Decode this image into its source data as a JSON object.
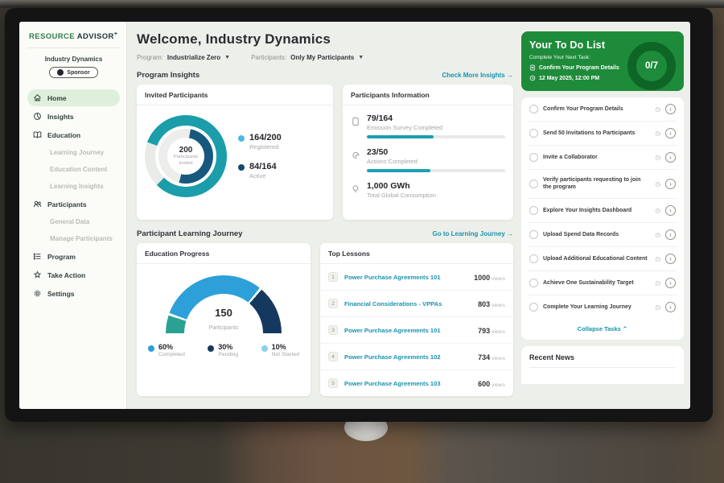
{
  "sidebar": {
    "logo": {
      "brand_green": "RESOURCE",
      "brand_dark": "ADVISOR",
      "plus": "+"
    },
    "account": {
      "name": "Industry Dynamics",
      "badge": "Sponsor"
    },
    "items": [
      {
        "label": "Home"
      },
      {
        "label": "Insights"
      },
      {
        "label": "Education"
      },
      {
        "label": "Learning Journey"
      },
      {
        "label": "Education Content"
      },
      {
        "label": "Learning Insights"
      },
      {
        "label": "Participants"
      },
      {
        "label": "General Data"
      },
      {
        "label": "Manage Participants"
      },
      {
        "label": "Program"
      },
      {
        "label": "Take Action"
      },
      {
        "label": "Settings"
      }
    ]
  },
  "header": {
    "title": "Welcome, Industry Dynamics",
    "filters": [
      {
        "label": "Program:",
        "value": "Industrialize Zero"
      },
      {
        "label": "Participants:",
        "value": "Only My Participants"
      }
    ]
  },
  "insights_section": {
    "heading": "Program Insights",
    "link": "Check More Insights",
    "link_arrow": "→"
  },
  "invited": {
    "title": "Invited Participants",
    "center_value": "200",
    "center_label": "Participants Invited",
    "legend": [
      {
        "value": "164/200",
        "label": "Registered",
        "dot_color": "#4cb8e8"
      },
      {
        "value": "84/164",
        "label": "Active",
        "dot_color": "#124a70"
      }
    ]
  },
  "participants_info": {
    "title": "Participants Information",
    "stats": [
      {
        "value": "79/164",
        "label": "Emission Survey Completed",
        "num": 79,
        "total": 164,
        "has_bar": true
      },
      {
        "value": "23/50",
        "label": "Actions Completed",
        "num": 23,
        "total": 50,
        "has_bar": true
      },
      {
        "value": "1,000 GWh",
        "label": "Total Global Consumption",
        "has_bar": false
      }
    ]
  },
  "journey_section": {
    "heading": "Participant Learning Journey",
    "link": "Go to Learning Journey",
    "link_arrow": "→"
  },
  "education_progress": {
    "title": "Education Progress",
    "center_value": "150",
    "center_label": "Participants",
    "legend": [
      {
        "value": "60%",
        "label": "Completed",
        "dot_color": "#2d9fd9"
      },
      {
        "value": "30%",
        "label": "Pending",
        "dot_color": "#15395e"
      },
      {
        "value": "10%",
        "label": "Not Started",
        "dot_color": "#85d2f0"
      }
    ]
  },
  "top_lessons": {
    "title": "Top Lessons",
    "views_suffix": " views",
    "rows": [
      {
        "rank": "1",
        "title": "Power Purchase Agreements 101",
        "views": "1000"
      },
      {
        "rank": "2",
        "title": "Financial Considerations - VPPAs",
        "views": "803"
      },
      {
        "rank": "3",
        "title": "Power Purchase Agreements 101",
        "views": "793"
      },
      {
        "rank": "4",
        "title": "Power Purchase Agreements 102",
        "views": "734"
      },
      {
        "rank": "5",
        "title": "Power Purchase Agreements 103",
        "views": "600"
      }
    ]
  },
  "todo": {
    "title": "Your To Do List",
    "subtitle": "Complete Your Next Task:",
    "next_task": "Confirm Your Program Details",
    "due": "12 May 2025, 12:00 PM",
    "progress": "0/7",
    "clock_glyph": "◷",
    "chevron_glyph": "›",
    "tasks": [
      "Confirm Your Program Details",
      "Send 50 Invitations to Participants",
      "Invite a Collaborator",
      "Verify participants requesting to join the program",
      "Explore Your Insights Dashboard",
      "Upload Spend Data Records",
      "Upload Additional Educational Content",
      "Achieve One Sustainability Target",
      "Complete Your Learning Journey"
    ],
    "collapse_label": "Collapse Tasks",
    "collapse_arrow": "⌃"
  },
  "news": {
    "title": "Recent News"
  },
  "chart_data": [
    {
      "type": "pie",
      "subtype": "double-ring-donut",
      "title": "Invited Participants",
      "center": {
        "value": 200,
        "label": "Participants Invited"
      },
      "series": [
        {
          "name": "Registered",
          "value": 164,
          "total": 200,
          "color": "#1b9daa",
          "track": "#e9ebe8",
          "from_deg": 290
        },
        {
          "name": "Active",
          "value": 84,
          "total": 164,
          "color": "#17587e",
          "track": "#ededeb",
          "from_deg": 10
        }
      ]
    },
    {
      "type": "pie",
      "subtype": "half-gauge",
      "title": "Education Progress",
      "center": {
        "value": 150,
        "label": "Participants"
      },
      "segments": [
        {
          "label": "Not Started",
          "pct": 10,
          "color": "#2ba193"
        },
        {
          "label": "Completed",
          "pct": 60,
          "color": "#2d9fd9"
        },
        {
          "label": "Pending",
          "pct": 30,
          "color": "#15395e"
        }
      ]
    },
    {
      "type": "bar",
      "title": "Participants Information",
      "categories": [
        "Emission Survey Completed",
        "Actions Completed"
      ],
      "values": [
        79,
        23
      ],
      "totals": [
        164,
        50
      ],
      "bar_color": "#1b9fb4"
    },
    {
      "type": "table",
      "title": "Top Lessons",
      "categories": [
        "Power Purchase Agreements 101",
        "Financial Considerations - VPPAs",
        "Power Purchase Agreements 101",
        "Power Purchase Agreements 102",
        "Power Purchase Agreements 103"
      ],
      "values": [
        1000,
        803,
        793,
        734,
        600
      ],
      "ylabel": "views"
    }
  ]
}
